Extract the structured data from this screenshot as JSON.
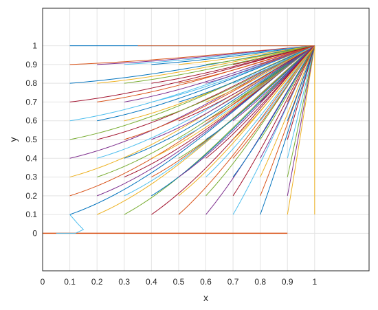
{
  "chart_data": {
    "type": "line",
    "title": "",
    "xlabel": "x",
    "ylabel": "y",
    "xlim": [
      0,
      1.2
    ],
    "ylim": [
      -0.2,
      1.2
    ],
    "x_ticks": [
      "0",
      "0.1",
      "0.2",
      "0.3",
      "0.4",
      "0.5",
      "0.6",
      "0.7",
      "0.8",
      "0.9",
      "1"
    ],
    "y_ticks": [
      "0",
      "0.1",
      "0.2",
      "0.3",
      "0.4",
      "0.5",
      "0.6",
      "0.7",
      "0.8",
      "0.9",
      "1"
    ],
    "grid": true,
    "legend": false,
    "series_description": "Family of curves y(x) starting at x0 in {0.1,...,0.9} with y0 in {0.1,...,0.9}, each converging to (1, 1); horizontal segment from (0.1,1) to (1,1); baseline at y = 0 from x = 0 to x = 0.9; small loop near (0.1..0.15, 0..0.1)",
    "start_x": [
      0.1,
      0.2,
      0.3,
      0.4,
      0.5,
      0.6,
      0.7,
      0.8,
      0.9
    ],
    "start_y": [
      0.1,
      0.2,
      0.3,
      0.4,
      0.5,
      0.6,
      0.7,
      0.8,
      0.9
    ],
    "end_point": [
      1,
      1
    ],
    "baseline": {
      "y": 0,
      "x_start": 0,
      "x_end": 0.9
    },
    "top_line": {
      "y": 1,
      "x_start": 0.1,
      "x_end": 1
    },
    "loop_points": [
      [
        0.1,
        0.1
      ],
      [
        0.13,
        0.05
      ],
      [
        0.15,
        0.02
      ],
      [
        0.12,
        0.0
      ],
      [
        0.05,
        0.0
      ]
    ],
    "colors": [
      "#0072BD",
      "#D95319",
      "#EDB120",
      "#7E2F8E",
      "#77AC30",
      "#4DBEEE",
      "#A2142F"
    ]
  }
}
